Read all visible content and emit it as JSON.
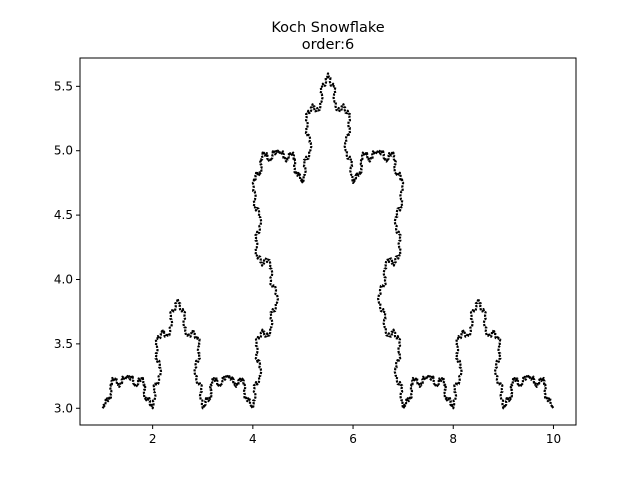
{
  "chart_data": {
    "type": "line",
    "title": "Koch Snowflake",
    "subtitle": "order:6",
    "xlabel": "",
    "ylabel": "",
    "xlim": [
      0.55,
      10.45
    ],
    "ylim": [
      2.87,
      5.72
    ],
    "grid": false,
    "x_ticks": [
      {
        "value": 2,
        "label": "2"
      },
      {
        "value": 4,
        "label": "4"
      },
      {
        "value": 6,
        "label": "6"
      },
      {
        "value": 8,
        "label": "8"
      },
      {
        "value": 10,
        "label": "10"
      }
    ],
    "y_ticks": [
      {
        "value": 3.0,
        "label": "3.0"
      },
      {
        "value": 3.5,
        "label": "3.5"
      },
      {
        "value": 4.0,
        "label": "4.0"
      },
      {
        "value": 4.5,
        "label": "4.5"
      },
      {
        "value": 5.0,
        "label": "5.0"
      },
      {
        "value": 5.5,
        "label": "5.5"
      }
    ],
    "series": [
      {
        "order": 6,
        "color": "#000000",
        "marker": "dot",
        "base_shape": [
          {
            "x": 1.0,
            "y": 3.0
          },
          {
            "x": 1.5,
            "y": 3.25
          },
          {
            "x": 2.0,
            "y": 3.0
          },
          {
            "x": 2.5,
            "y": 3.85
          },
          {
            "x": 3.0,
            "y": 3.0
          },
          {
            "x": 3.5,
            "y": 3.25
          },
          {
            "x": 4.0,
            "y": 3.0
          },
          {
            "x": 4.5,
            "y": 3.85
          },
          {
            "x": 4.0,
            "y": 4.75
          },
          {
            "x": 4.5,
            "y": 5.0
          },
          {
            "x": 5.0,
            "y": 4.75
          },
          {
            "x": 5.5,
            "y": 5.6
          },
          {
            "x": 6.0,
            "y": 4.75
          },
          {
            "x": 6.5,
            "y": 5.0
          },
          {
            "x": 7.0,
            "y": 4.75
          },
          {
            "x": 6.5,
            "y": 3.85
          },
          {
            "x": 7.0,
            "y": 3.0
          },
          {
            "x": 7.5,
            "y": 3.25
          },
          {
            "x": 8.0,
            "y": 3.0
          },
          {
            "x": 8.5,
            "y": 3.85
          },
          {
            "x": 9.0,
            "y": 3.0
          },
          {
            "x": 9.5,
            "y": 3.25
          },
          {
            "x": 10.0,
            "y": 3.0
          }
        ]
      }
    ]
  }
}
